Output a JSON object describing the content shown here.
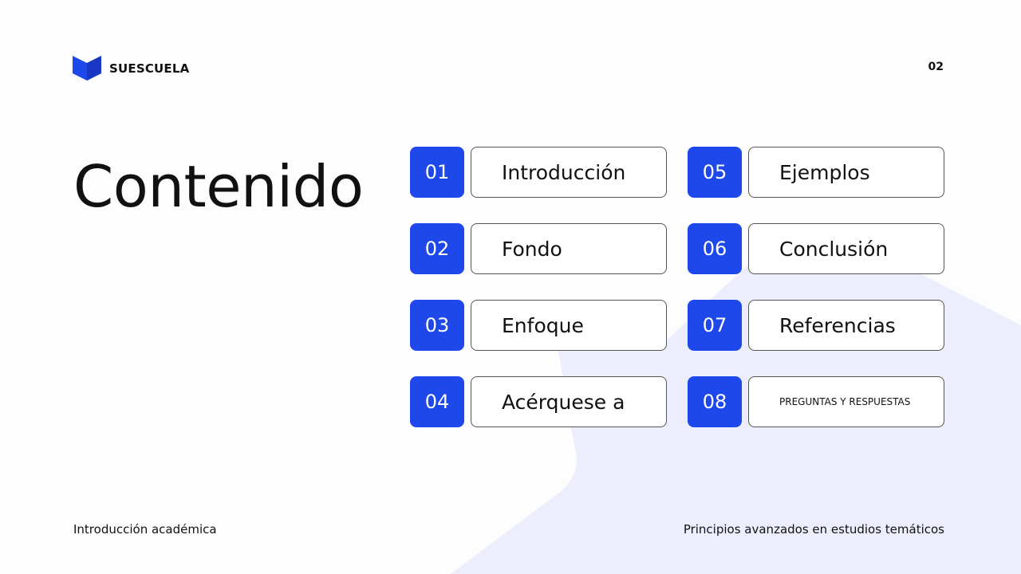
{
  "brand": {
    "name": "SUESCUELA",
    "accent": "#1f48ea"
  },
  "page_number": "02",
  "title": "Contenido",
  "items": [
    {
      "num": "01",
      "label": "Introducción"
    },
    {
      "num": "02",
      "label": "Fondo"
    },
    {
      "num": "03",
      "label": "Enfoque"
    },
    {
      "num": "04",
      "label": "Acérquese a"
    },
    {
      "num": "05",
      "label": "Ejemplos"
    },
    {
      "num": "06",
      "label": "Conclusión"
    },
    {
      "num": "07",
      "label": "Referencias"
    },
    {
      "num": "08",
      "label": "PREGUNTAS Y RESPUESTAS"
    }
  ],
  "footer": {
    "left": "Introducción académica",
    "right": "Principios avanzados en estudios temáticos"
  }
}
